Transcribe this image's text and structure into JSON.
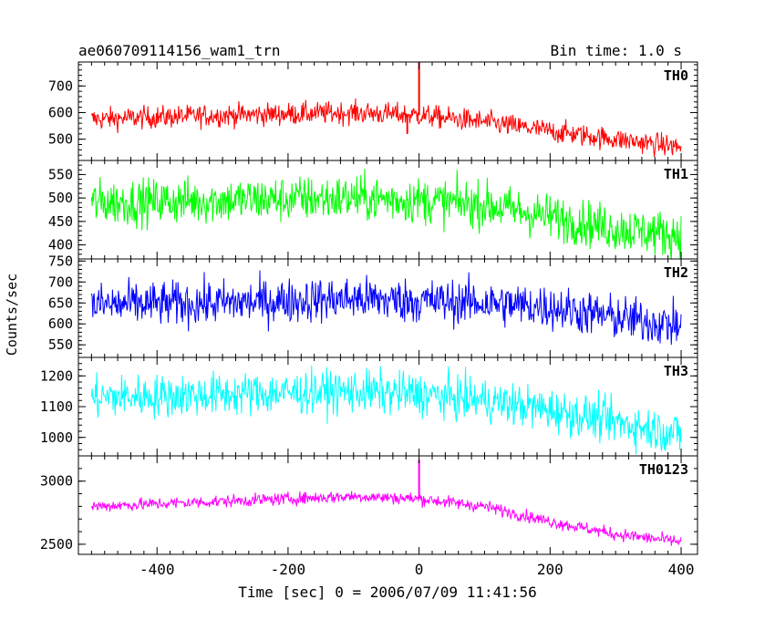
{
  "header": {
    "obs_id": "ae060709114156_wam1_trn",
    "bin_time": "Bin time: 1.0 s"
  },
  "axes": {
    "ylabel": "Counts/sec",
    "xlabel": "Time [sec] 0 = 2006/07/09 11:41:56"
  },
  "chart_data": {
    "type": "line",
    "xlim": [
      -520,
      425
    ],
    "x_ticks": [
      -400,
      -200,
      0,
      200,
      400
    ],
    "x_sample": {
      "start": -500,
      "end": 400,
      "step": 1
    },
    "panels": [
      {
        "name": "TH0",
        "color": "#ff0000",
        "ylim": [
          420,
          790
        ],
        "y_ticks": [
          500,
          600,
          700
        ],
        "level": {
          "x": [
            -500,
            -300,
            -100,
            0,
            100,
            200,
            300,
            400
          ],
          "y": [
            575,
            590,
            600,
            590,
            565,
            530,
            500,
            470
          ]
        },
        "noise": 30,
        "spikes": [
          {
            "x": 0,
            "y": 790
          },
          {
            "x": -18,
            "y": 520
          }
        ]
      },
      {
        "name": "TH1",
        "color": "#00ff00",
        "ylim": [
          370,
          580
        ],
        "y_ticks": [
          400,
          450,
          500,
          550
        ],
        "level": {
          "x": [
            -500,
            -300,
            -100,
            0,
            100,
            200,
            300,
            400
          ],
          "y": [
            490,
            495,
            500,
            495,
            485,
            460,
            435,
            420
          ]
        },
        "noise": 35,
        "spikes": []
      },
      {
        "name": "TH2",
        "color": "#0000ff",
        "ylim": [
          520,
          755
        ],
        "y_ticks": [
          550,
          600,
          650,
          700,
          750
        ],
        "level": {
          "x": [
            -500,
            -300,
            -100,
            0,
            100,
            200,
            300,
            400
          ],
          "y": [
            645,
            650,
            660,
            655,
            650,
            640,
            615,
            595
          ]
        },
        "noise": 38,
        "spikes": []
      },
      {
        "name": "TH3",
        "color": "#00ffff",
        "ylim": [
          940,
          1260
        ],
        "y_ticks": [
          1000,
          1100,
          1200
        ],
        "level": {
          "x": [
            -500,
            -300,
            -100,
            0,
            100,
            200,
            300,
            400
          ],
          "y": [
            1130,
            1140,
            1150,
            1140,
            1120,
            1090,
            1050,
            1010
          ]
        },
        "noise": 50,
        "spikes": []
      },
      {
        "name": "TH0123",
        "color": "#ff00ff",
        "ylim": [
          2420,
          3200
        ],
        "y_ticks": [
          2500,
          3000
        ],
        "level": {
          "x": [
            -500,
            -300,
            -100,
            0,
            100,
            200,
            300,
            400
          ],
          "y": [
            2800,
            2840,
            2880,
            2860,
            2800,
            2680,
            2580,
            2520
          ]
        },
        "noise": 35,
        "spikes": [
          {
            "x": 0,
            "y": 3170
          }
        ]
      }
    ]
  }
}
